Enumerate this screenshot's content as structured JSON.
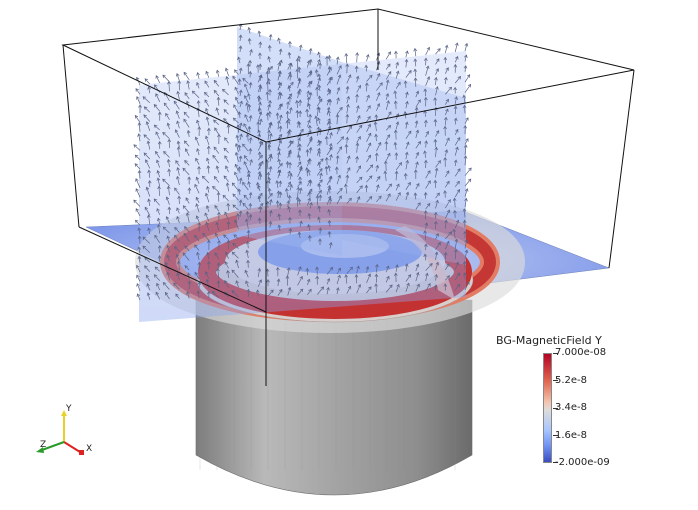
{
  "legend": {
    "title": "BG-MagneticField Y",
    "ticks": [
      "7.000e-08",
      "5.2e-8",
      "3.4e-8",
      "1.6e-8",
      "-2.000e-09"
    ],
    "colors": {
      "high": "#b40426",
      "mid": "#dddcdc",
      "low": "#3b4cc0"
    }
  },
  "axes": {
    "x": "X",
    "y": "Y",
    "z": "Z"
  }
}
